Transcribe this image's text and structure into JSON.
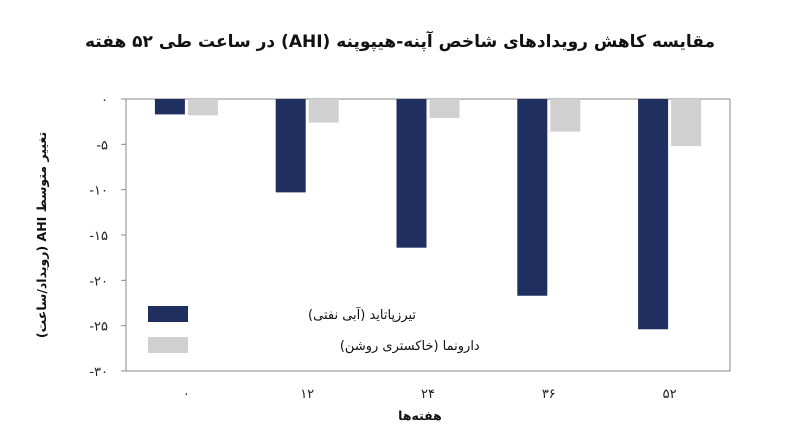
{
  "chart_data": {
    "type": "bar",
    "title": "مقایسه کاهش رویدادهای شاخص آپنه-هیپوپنه (AHI) در ساعت طی ۵۲ هفته",
    "xlabel": "هفته‌ها",
    "ylabel": "تغییر متوسط AHI (رویداد/ساعت)",
    "categories": [
      "۰",
      "۱۲",
      "۲۴",
      "۳۶",
      "۵۲"
    ],
    "ylim": [
      -30,
      0
    ],
    "yticks": [
      {
        "value": 0,
        "label": "۰"
      },
      {
        "value": -5,
        "label": "-۵"
      },
      {
        "value": -10,
        "label": "-۱۰"
      },
      {
        "value": -15,
        "label": "-۱۵"
      },
      {
        "value": -20,
        "label": "-۲۰"
      },
      {
        "value": -25,
        "label": "-۲۵"
      },
      {
        "value": -30,
        "label": "-۳۰"
      }
    ],
    "grid": false,
    "legend_position": "bottom-left",
    "series": [
      {
        "name": "تیرزپاتاید (آبی نفتی)",
        "color": "#1f2f5f",
        "values": [
          -1.7,
          -10.3,
          -16.4,
          -21.7,
          -25.4
        ]
      },
      {
        "name": "دارونما (خاکستری روشن)",
        "color": "#d0d0d0",
        "values": [
          -1.8,
          -2.6,
          -2.1,
          -3.6,
          -5.2
        ]
      }
    ]
  }
}
